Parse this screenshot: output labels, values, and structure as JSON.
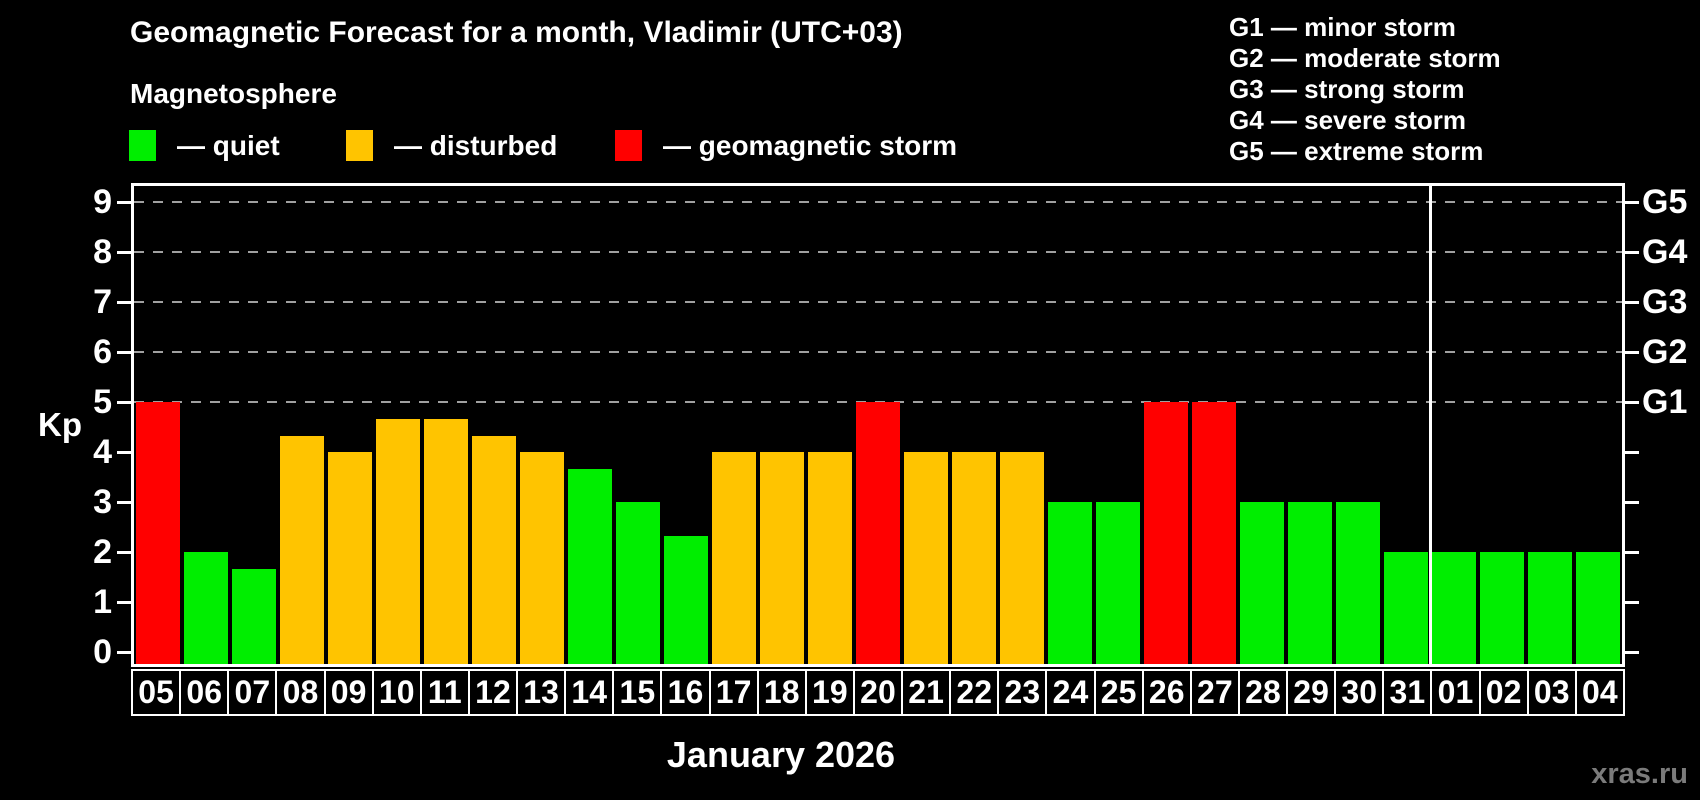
{
  "title": "Geomagnetic Forecast for a month, Vladimir (UTC+03)",
  "subtitle": "Magnetosphere",
  "legend": {
    "items": [
      {
        "key": "quiet",
        "label": "— quiet"
      },
      {
        "key": "disturbed",
        "label": "— disturbed"
      },
      {
        "key": "storm",
        "label": "— geomagnetic storm"
      }
    ]
  },
  "g_legend": {
    "lines": [
      "G1 — minor storm",
      "G2 — moderate storm",
      "G3 — strong storm",
      "G4 — severe storm",
      "G5 — extreme storm"
    ]
  },
  "colors": {
    "quiet": "#00ee00",
    "disturbed": "#ffc400",
    "storm": "#ff0000",
    "gridline": "#a0a0a0",
    "frame": "#ffffff",
    "watermark_text": "#7b7b7b"
  },
  "axis": {
    "ylabel": "Kp",
    "yticks": [
      0,
      1,
      2,
      3,
      4,
      5,
      6,
      7,
      8,
      9
    ],
    "right_labels": [
      {
        "label": "G1",
        "kp": 5
      },
      {
        "label": "G2",
        "kp": 6
      },
      {
        "label": "G3",
        "kp": 7
      },
      {
        "label": "G4",
        "kp": 8
      },
      {
        "label": "G5",
        "kp": 9
      }
    ]
  },
  "month_label": "January 2026",
  "watermark": "xras.ru",
  "chart_data": {
    "type": "bar",
    "title": "Geomagnetic Forecast for a month, Vladimir (UTC+03)",
    "subtitle": "Magnetosphere",
    "xlabel": "January 2026",
    "ylabel": "Kp",
    "ylim": [
      0,
      9.4
    ],
    "grid": "dashed horizontal at Kp 5-9 only",
    "legend_position": "top-left",
    "categories": [
      "05",
      "06",
      "07",
      "08",
      "09",
      "10",
      "11",
      "12",
      "13",
      "14",
      "15",
      "16",
      "17",
      "18",
      "19",
      "20",
      "21",
      "22",
      "23",
      "24",
      "25",
      "26",
      "27",
      "28",
      "29",
      "30",
      "31",
      "01",
      "02",
      "03",
      "04"
    ],
    "values": [
      5,
      2,
      1.67,
      4.33,
      4,
      4.67,
      4.67,
      4.33,
      4,
      3.67,
      3,
      2.33,
      4,
      4,
      4,
      5,
      4,
      4,
      4,
      3,
      3,
      5,
      5,
      3,
      3,
      3,
      2,
      2,
      2,
      2,
      2
    ],
    "status": [
      "storm",
      "quiet",
      "quiet",
      "disturbed",
      "disturbed",
      "disturbed",
      "disturbed",
      "disturbed",
      "disturbed",
      "quiet",
      "quiet",
      "quiet",
      "disturbed",
      "disturbed",
      "disturbed",
      "storm",
      "disturbed",
      "disturbed",
      "disturbed",
      "quiet",
      "quiet",
      "storm",
      "storm",
      "quiet",
      "quiet",
      "quiet",
      "quiet",
      "quiet",
      "quiet",
      "quiet",
      "quiet"
    ],
    "gridlines_kp": [
      5,
      6,
      7,
      8,
      9
    ],
    "gridline_right_labels": [
      "G1",
      "G2",
      "G3",
      "G4",
      "G5"
    ],
    "month_separator_after_index": 26
  }
}
